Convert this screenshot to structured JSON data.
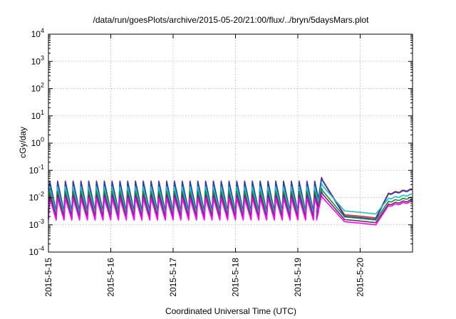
{
  "chart_data": {
    "type": "line",
    "title": "/data/run/goesPlots/archive/2015-05-20/21:00/flux/../bryn/5daysMars.plot",
    "xlabel": "Coordinated Universal Time (UTC)",
    "ylabel": "cGy/day",
    "yscale": "log",
    "ylim": [
      0.0001,
      10000
    ],
    "xlim_days": [
      "2015-5-15",
      "2015-5-21 (approx. 2015-5-20 21:00)"
    ],
    "x_ticks": [
      "2015-5-15",
      "2015-5-16",
      "2015-5-17",
      "2015-5-18",
      "2015-5-19",
      "2015-5-20"
    ],
    "y_ticks": [
      {
        "base": "10",
        "exp": "-4"
      },
      {
        "base": "10",
        "exp": "-3"
      },
      {
        "base": "10",
        "exp": "-2"
      },
      {
        "base": "10",
        "exp": "-1"
      },
      {
        "base": "10",
        "exp": "0"
      },
      {
        "base": "10",
        "exp": "1"
      },
      {
        "base": "10",
        "exp": "2"
      },
      {
        "base": "10",
        "exp": "3"
      },
      {
        "base": "10",
        "exp": "4"
      }
    ],
    "grid": true,
    "legend": "none",
    "series": [
      {
        "color": "#d62728",
        "peak": 0.05,
        "trough": 0.003,
        "quiet_min": 0.0018,
        "late": 0.02
      },
      {
        "color": "#1f3fbf",
        "peak": 0.048,
        "trough": 0.003,
        "quiet_min": 0.0016,
        "late": 0.019
      },
      {
        "color": "#20c0c0",
        "peak": 0.03,
        "trough": 0.0025,
        "quiet_min": 0.0025,
        "late": 0.013
      },
      {
        "color": "#1a8a3a",
        "peak": 0.02,
        "trough": 0.002,
        "quiet_min": 0.0015,
        "late": 0.01
      },
      {
        "color": "#6b2a6b",
        "peak": 0.015,
        "trough": 0.0018,
        "quiet_min": 0.0012,
        "late": 0.008
      },
      {
        "color": "#ff00ff",
        "peak": 0.011,
        "trough": 0.0015,
        "quiet_min": 0.001,
        "late": 0.007
      }
    ]
  }
}
